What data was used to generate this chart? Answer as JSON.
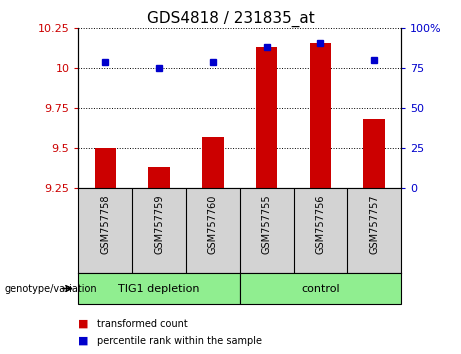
{
  "title": "GDS4818 / 231835_at",
  "samples": [
    "GSM757758",
    "GSM757759",
    "GSM757760",
    "GSM757755",
    "GSM757756",
    "GSM757757"
  ],
  "red_values": [
    9.5,
    9.38,
    9.57,
    10.13,
    10.16,
    9.68
  ],
  "blue_values": [
    79,
    75,
    79,
    88,
    91,
    80
  ],
  "ylim_left": [
    9.25,
    10.25
  ],
  "ylim_right": [
    0,
    100
  ],
  "yticks_left": [
    9.25,
    9.5,
    9.75,
    10.0,
    10.25
  ],
  "yticks_right": [
    0,
    25,
    50,
    75,
    100
  ],
  "ytick_labels_left": [
    "9.25",
    "9.5",
    "9.75",
    "10",
    "10.25"
  ],
  "ytick_labels_right": [
    "0",
    "25",
    "50",
    "75",
    "100%"
  ],
  "left_tick_color": "#cc0000",
  "right_tick_color": "#0000cc",
  "bar_color": "#cc0000",
  "dot_color": "#0000cc",
  "group_labels": [
    "TIG1 depletion",
    "control"
  ],
  "legend_red": "transformed count",
  "legend_blue": "percentile rank within the sample",
  "genotype_label": "genotype/variation",
  "bg_color": "#d3d3d3",
  "plot_bg_color": "#ffffff",
  "group_bg_color": "#90ee90",
  "title_fontsize": 11,
  "tick_fontsize": 8,
  "sample_fontsize": 7,
  "legend_fontsize": 8,
  "group_fontsize": 8,
  "bar_width": 0.4
}
